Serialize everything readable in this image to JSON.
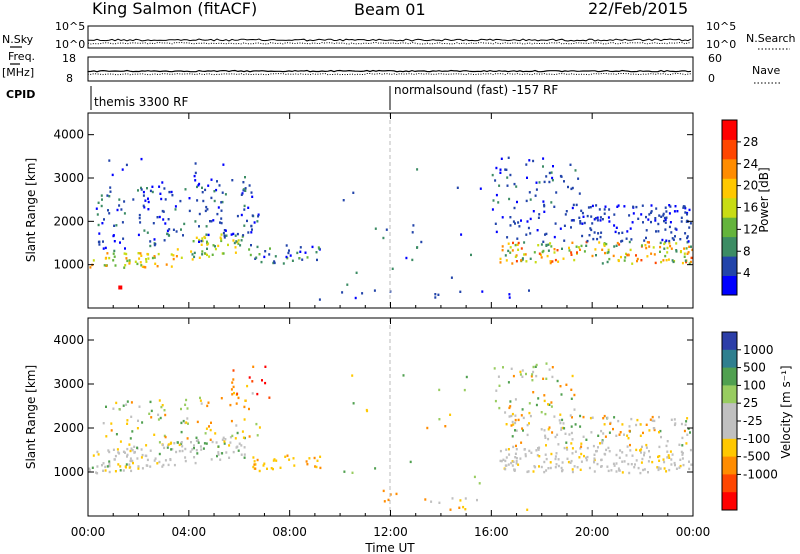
{
  "header": {
    "station": "King Salmon (fitACF)",
    "beam": "Beam 01",
    "date": "22/Feb/2015"
  },
  "strip_labels": {
    "nsky": "N.Sky",
    "nsearch": "N.Search",
    "nsky_ticks": [
      "10^5",
      "10^0"
    ],
    "nsearch_ticks": [
      "10^5",
      "10^0"
    ],
    "freq": "Freq.",
    "freq_unit": "[MHz]",
    "freq_ticks": [
      "18",
      "8"
    ],
    "nave": "Nave",
    "nave_ticks": [
      "60",
      "0"
    ],
    "cpid": "CPID",
    "cpid_first": "themis 3300 RF",
    "cpid_second": "normalsound (fast) -157 RF"
  },
  "colors": {
    "power_scale": [
      "#0000ff",
      "#2244aa",
      "#3c8c64",
      "#64b43c",
      "#c8dc14",
      "#ffc800",
      "#ff8c00",
      "#ff4600",
      "#ff0000"
    ],
    "velocity_scale": [
      "#2c3ea8",
      "#2f7f8f",
      "#50a050",
      "#98cc60",
      "#c0c0c0",
      "#c0c0c0",
      "#ffc800",
      "#ff8c00",
      "#ff4600",
      "#ff0000"
    ]
  },
  "chart_data": [
    {
      "type": "heatmap",
      "name": "power",
      "ylabel": "Slant Range [km]",
      "xlim": [
        0,
        24
      ],
      "ylim": [
        0,
        4500
      ],
      "yticks": [
        1000,
        2000,
        3000,
        4000
      ],
      "colorbar_label": "Power [dB]",
      "colorbar_ticks": [
        "28",
        "24",
        "20",
        "16",
        "12",
        "8",
        "4"
      ],
      "colorbar_range": [
        0,
        32
      ],
      "features": [
        {
          "t_start": 0.0,
          "t_end": 6.2,
          "range_start": 900,
          "range_end": 1300,
          "level": "high"
        },
        {
          "t_start": 0.5,
          "t_end": 7.0,
          "range_start": 1300,
          "range_end": 3500,
          "level": "low"
        },
        {
          "t_start": 6.3,
          "t_end": 9.2,
          "range_start": 1000,
          "range_end": 1500,
          "level": "low"
        },
        {
          "t_start": 16.5,
          "t_end": 24.0,
          "range_start": 1000,
          "range_end": 1700,
          "level": "high"
        },
        {
          "t_start": 16.0,
          "t_end": 24.0,
          "range_start": 1700,
          "range_end": 3500,
          "level": "low"
        },
        {
          "t_start": 9.0,
          "t_end": 18.0,
          "range_start": 200,
          "range_end": 500,
          "level": "low"
        }
      ]
    },
    {
      "type": "heatmap",
      "name": "velocity",
      "ylabel": "Slant Range [km]",
      "xlabel": "Time UT",
      "xlim": [
        0,
        24
      ],
      "ylim": [
        0,
        4500
      ],
      "yticks": [
        1000,
        2000,
        3000,
        4000
      ],
      "xticks": [
        "00:00",
        "04:00",
        "08:00",
        "12:00",
        "16:00",
        "20:00",
        "00:00"
      ],
      "colorbar_label": "Velocity [m s⁻¹]",
      "colorbar_ticks": [
        "1000",
        "500",
        "100",
        "25",
        "-25",
        "-100",
        "-500",
        "-1000"
      ],
      "features": [
        {
          "t_start": 0.0,
          "t_end": 6.2,
          "range_start": 900,
          "range_end": 1500,
          "velocity": "near zero"
        },
        {
          "t_start": 6.5,
          "t_end": 9.2,
          "range_start": 1000,
          "range_end": 1400,
          "velocity": "-100 to -500"
        },
        {
          "t_start": 16.5,
          "t_end": 24.0,
          "range_start": 1000,
          "range_end": 2300,
          "velocity": "near zero"
        },
        {
          "t_start": 16.0,
          "t_end": 19.5,
          "range_start": 2500,
          "range_end": 3500,
          "velocity": "mixed"
        }
      ]
    }
  ]
}
